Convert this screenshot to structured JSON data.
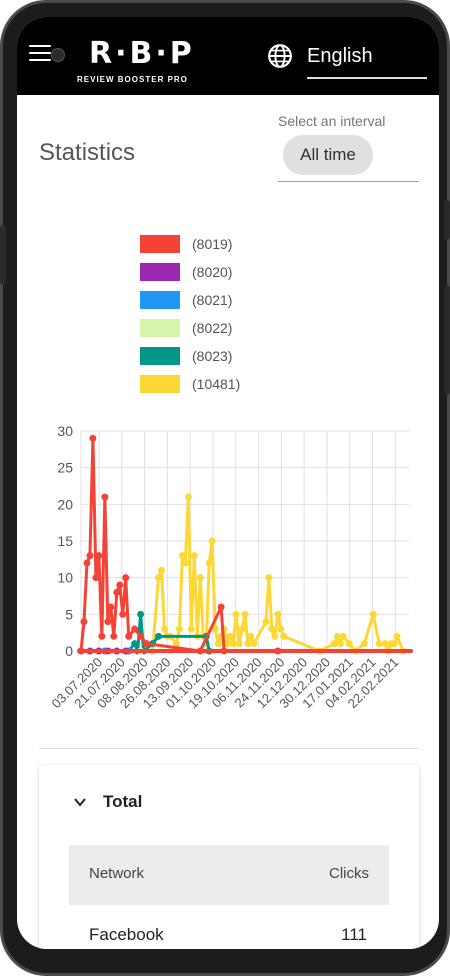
{
  "header": {
    "logo": "R·B·P",
    "logo_subtitle": "REVIEW BOOSTER PRO",
    "language": "English"
  },
  "page": {
    "title": "Statistics",
    "interval_label": "Select an interval",
    "interval_value": "All time"
  },
  "colors": {
    "header_bg": "#000000",
    "accent_chip": "#e0e0e0"
  },
  "chart_data": {
    "type": "line",
    "title": "",
    "ylim": [
      0,
      30
    ],
    "yticks": [
      0,
      5,
      10,
      15,
      20,
      25,
      30
    ],
    "x_tick_labels": [
      "03.07.2020",
      "21.07.2020",
      "08.08.2020",
      "26.08.2020",
      "13.09.2020",
      "01.10.2020",
      "19.10.2020",
      "06.11.2020",
      "24.11.2020",
      "12.12.2020",
      "30.12.2020",
      "17.01.2021",
      "04.02.2021",
      "22.02.2021"
    ],
    "grid": true,
    "legend_position": "top",
    "series": [
      {
        "name": "(8019)",
        "color": "#f44336",
        "points": [
          [
            0,
            0
          ],
          [
            1,
            4
          ],
          [
            2,
            12
          ],
          [
            3,
            13
          ],
          [
            4,
            29
          ],
          [
            5,
            10
          ],
          [
            6,
            13
          ],
          [
            7,
            2
          ],
          [
            8,
            21
          ],
          [
            9,
            4
          ],
          [
            10,
            6
          ],
          [
            11,
            2
          ],
          [
            12,
            8
          ],
          [
            13,
            9
          ],
          [
            14,
            5
          ],
          [
            15,
            10
          ],
          [
            16,
            2
          ],
          [
            18,
            3
          ],
          [
            20,
            2
          ],
          [
            22,
            1
          ],
          [
            40,
            0
          ],
          [
            47,
            6
          ],
          [
            48,
            0
          ],
          [
            66,
            0
          ]
        ]
      },
      {
        "name": "(8020)",
        "color": "#9c27b0",
        "points": [
          [
            0,
            0
          ],
          [
            3,
            0
          ],
          [
            6,
            0
          ],
          [
            9,
            0
          ],
          [
            12,
            0
          ],
          [
            15,
            0
          ]
        ]
      },
      {
        "name": "(8021)",
        "color": "#2196f3",
        "points": [
          [
            0,
            0
          ],
          [
            8,
            0
          ],
          [
            16,
            0
          ]
        ]
      },
      {
        "name": "(8022)",
        "color": "#d7f5a8",
        "points": [
          [
            10,
            0
          ],
          [
            20,
            0
          ],
          [
            30,
            0
          ]
        ]
      },
      {
        "name": "(8023)",
        "color": "#009688",
        "points": [
          [
            16,
            0
          ],
          [
            18,
            1
          ],
          [
            19,
            0
          ],
          [
            20,
            5
          ],
          [
            21,
            0
          ],
          [
            24,
            1
          ],
          [
            26,
            2
          ],
          [
            42,
            2
          ],
          [
            43,
            0
          ]
        ]
      },
      {
        "name": "(10481)",
        "color": "#fdd835",
        "points": [
          [
            20,
            0
          ],
          [
            24,
            0
          ],
          [
            26,
            10
          ],
          [
            27,
            11
          ],
          [
            28,
            3
          ],
          [
            29,
            2
          ],
          [
            30,
            2
          ],
          [
            32,
            1
          ],
          [
            33,
            3
          ],
          [
            34,
            13
          ],
          [
            35,
            12
          ],
          [
            36,
            21
          ],
          [
            37,
            3
          ],
          [
            38,
            13
          ],
          [
            39,
            2
          ],
          [
            40,
            10
          ],
          [
            41,
            2
          ],
          [
            42,
            1
          ],
          [
            43,
            12
          ],
          [
            44,
            15
          ],
          [
            45,
            3
          ],
          [
            46,
            1
          ],
          [
            47,
            2
          ],
          [
            48,
            3
          ],
          [
            49,
            1
          ],
          [
            50,
            2
          ],
          [
            51,
            1
          ],
          [
            52,
            5
          ],
          [
            53,
            1
          ],
          [
            54,
            3
          ],
          [
            55,
            5
          ],
          [
            56,
            1
          ],
          [
            57,
            2
          ],
          [
            58,
            1
          ],
          [
            62,
            4
          ],
          [
            63,
            10
          ],
          [
            64,
            3
          ],
          [
            65,
            2
          ],
          [
            66,
            5
          ],
          [
            67,
            3
          ],
          [
            68,
            2
          ],
          [
            80,
            0
          ],
          [
            85,
            1
          ],
          [
            86,
            2
          ],
          [
            87,
            1
          ],
          [
            88,
            2
          ],
          [
            90,
            1
          ],
          [
            92,
            0
          ],
          [
            95,
            1
          ],
          [
            98,
            5
          ],
          [
            100,
            1
          ],
          [
            102,
            1
          ],
          [
            103,
            0
          ],
          [
            104,
            1
          ],
          [
            105,
            1
          ],
          [
            106,
            2
          ],
          [
            108,
            0
          ]
        ]
      }
    ],
    "x_max": 110
  },
  "total": {
    "title": "Total",
    "columns": [
      "Network",
      "Clicks"
    ],
    "rows": [
      {
        "network": "Facebook",
        "clicks": "111"
      }
    ]
  }
}
